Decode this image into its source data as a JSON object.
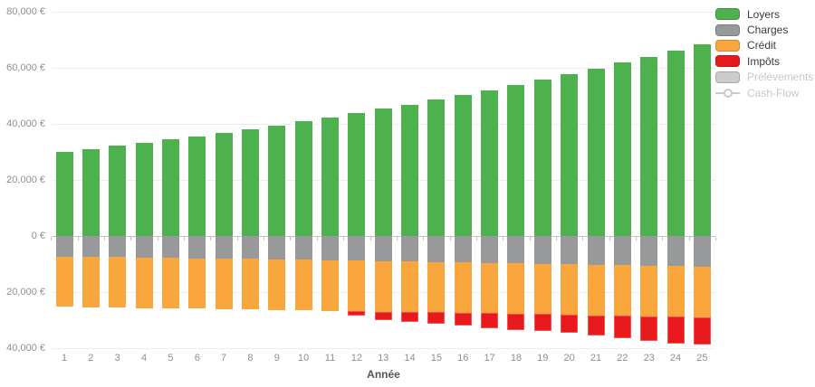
{
  "chart_data": {
    "type": "bar",
    "stacked": true,
    "title": "",
    "x_axis": {
      "title": "Année",
      "categories": [
        "1",
        "2",
        "3",
        "4",
        "5",
        "6",
        "7",
        "8",
        "9",
        "10",
        "11",
        "12",
        "13",
        "14",
        "15",
        "16",
        "17",
        "18",
        "19",
        "20",
        "21",
        "22",
        "23",
        "24",
        "25"
      ]
    },
    "y_axis": {
      "range": [
        -40000,
        80000
      ],
      "tick_step": 20000,
      "unit": "€",
      "ticks": [
        {
          "value": 80000,
          "label": "80,000 €"
        },
        {
          "value": 60000,
          "label": "60,000 €"
        },
        {
          "value": 40000,
          "label": "40,000 €"
        },
        {
          "value": 20000,
          "label": "20,000 €"
        },
        {
          "value": 0,
          "label": "0 €"
        },
        {
          "value": -20000,
          "label": "20,000 €"
        },
        {
          "value": -40000,
          "label": "40,000 €"
        }
      ]
    },
    "grid": true,
    "legend_position": "top-right",
    "series": [
      {
        "key": "loyers",
        "name": "Loyers",
        "type": "bar",
        "hidden": false,
        "color": "#4db24d",
        "values": [
          30000,
          31050,
          32140,
          33260,
          34430,
          35630,
          36880,
          38170,
          39500,
          40890,
          42320,
          43800,
          45330,
          46920,
          48560,
          50260,
          52020,
          53840,
          55720,
          57680,
          59690,
          61780,
          63950,
          66180,
          68500
        ]
      },
      {
        "key": "charges",
        "name": "Charges",
        "type": "bar",
        "hidden": false,
        "color": "#98999b",
        "values": [
          -7300,
          -7420,
          -7550,
          -7680,
          -7810,
          -7940,
          -8080,
          -8210,
          -8350,
          -8500,
          -8640,
          -8790,
          -8940,
          -9090,
          -9240,
          -9400,
          -9560,
          -9720,
          -9890,
          -10060,
          -10230,
          -10400,
          -10580,
          -10760,
          -10940
        ]
      },
      {
        "key": "credit",
        "name": "Crédit",
        "type": "bar",
        "hidden": false,
        "color": "#f9a63d",
        "values": [
          -18000,
          -18000,
          -18000,
          -18000,
          -18000,
          -18000,
          -18000,
          -18000,
          -18000,
          -18000,
          -18000,
          -18000,
          -18000,
          -18000,
          -18000,
          -18000,
          -18000,
          -18000,
          -18000,
          -18000,
          -18000,
          -18000,
          -18000,
          -18000,
          -18000
        ]
      },
      {
        "key": "impots",
        "name": "Impôts",
        "type": "bar",
        "hidden": false,
        "color": "#e8191d",
        "border_color": "#f65052",
        "values": [
          0,
          0,
          0,
          0,
          0,
          0,
          0,
          0,
          0,
          0,
          0,
          -1700,
          -3000,
          -3550,
          -4200,
          -4600,
          -5250,
          -5700,
          -6000,
          -6300,
          -7100,
          -7900,
          -8700,
          -9500,
          -9800
        ]
      },
      {
        "key": "prelevements",
        "name": "Prélévements sociaux",
        "type": "bar",
        "hidden": true,
        "color": "#cccccc",
        "values": []
      },
      {
        "key": "cashflow",
        "name": "Cash-Flow",
        "type": "line",
        "hidden": true,
        "color": "#c9c9c9",
        "values": []
      }
    ]
  },
  "legend": {
    "items": [
      {
        "key": "loyers",
        "label": "Loyers",
        "color": "#4db24d",
        "marker": "box",
        "disabled": false
      },
      {
        "key": "charges",
        "label": "Charges",
        "color": "#98999b",
        "marker": "box",
        "disabled": false
      },
      {
        "key": "credit",
        "label": "Crédit",
        "color": "#f9a63d",
        "marker": "box",
        "disabled": false
      },
      {
        "key": "impots",
        "label": "Impôts",
        "color": "#e8191d",
        "marker": "box",
        "disabled": false
      },
      {
        "key": "prelevements",
        "label": "Prélévements sociaux",
        "color": "#cccccc",
        "marker": "box",
        "disabled": true
      },
      {
        "key": "cashflow",
        "label": "Cash-Flow",
        "color": "#c9c9c9",
        "marker": "line-circle",
        "disabled": true
      }
    ]
  }
}
